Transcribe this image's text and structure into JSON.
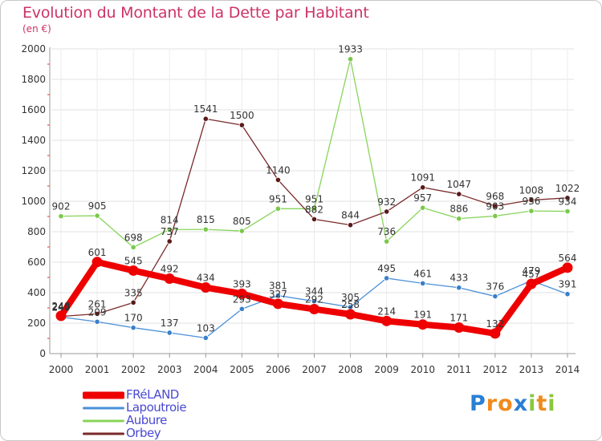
{
  "chart_data": {
    "type": "line",
    "title": "Evolution du Montant de la Dette par Habitant",
    "ylabel": "(en €)",
    "xlabel": "",
    "categories": [
      "2000",
      "2001",
      "2002",
      "2003",
      "2004",
      "2005",
      "2006",
      "2007",
      "2008",
      "2009",
      "2010",
      "2011",
      "2012",
      "2013",
      "2014"
    ],
    "ylim": [
      0,
      2000
    ],
    "yticks": [
      0,
      200,
      400,
      600,
      800,
      1000,
      1200,
      1400,
      1600,
      1800,
      2000
    ],
    "ytick_labels": [
      "0",
      "200",
      "400",
      "600",
      "800",
      "1000",
      "1200",
      "1400",
      "1600",
      "1800",
      "2000"
    ],
    "grid": true,
    "series": [
      {
        "name": "FRéLAND",
        "color": "#ee0000",
        "values": [
          248,
          601,
          545,
          492,
          434,
          393,
          327,
          292,
          258,
          214,
          191,
          171,
          132,
          457,
          564
        ],
        "labels": [
          "248",
          "601",
          "545",
          "492",
          "434",
          "393",
          "327",
          "292",
          "258",
          "214",
          "191",
          "171",
          "132",
          "457",
          "564"
        ]
      },
      {
        "name": "Lapoutroie",
        "color": "#4a90d9",
        "values": [
          240,
          209,
          170,
          137,
          103,
          293,
          381,
          344,
          305,
          495,
          461,
          433,
          376,
          479,
          391
        ],
        "labels": [
          "240",
          "209",
          "170",
          "137",
          "103",
          "293",
          "381",
          "344",
          "305",
          "495",
          "461",
          "433",
          "376",
          "479",
          "391"
        ]
      },
      {
        "name": "Aubure",
        "color": "#88d45a",
        "values": [
          902,
          905,
          698,
          814,
          815,
          805,
          951,
          951,
          1933,
          736,
          957,
          886,
          903,
          936,
          934
        ],
        "labels": [
          "902",
          "905",
          "698",
          "814",
          "815",
          "805",
          "951",
          "951",
          "1933",
          "736",
          "957",
          "886",
          "903",
          "936",
          "934"
        ]
      },
      {
        "name": "Orbey",
        "color": "#7a2a2a",
        "values": [
          244,
          261,
          335,
          737,
          1541,
          1500,
          1140,
          882,
          844,
          932,
          1091,
          1047,
          968,
          1008,
          1022
        ],
        "labels": [
          "244",
          "261",
          "335",
          "737",
          "1541",
          "1500",
          "1140",
          "882",
          "844",
          "932",
          "1091",
          "1047",
          "968",
          "1008",
          "1022"
        ]
      }
    ]
  },
  "legend": {
    "items": [
      {
        "label": "FRéLAND"
      },
      {
        "label": "Lapoutroie"
      },
      {
        "label": "Aubure"
      },
      {
        "label": "Orbey"
      }
    ]
  },
  "branding": {
    "logo_text": "Proxiti",
    "logo_letters": [
      "P",
      "r",
      "o",
      "x",
      "i",
      "t",
      "i"
    ],
    "logo_colors": [
      "#2a7fd4",
      "#f08a1c",
      "#f08a1c",
      "#2a7fd4",
      "#8cc63f",
      "#f08a1c",
      "#8cc63f"
    ]
  }
}
